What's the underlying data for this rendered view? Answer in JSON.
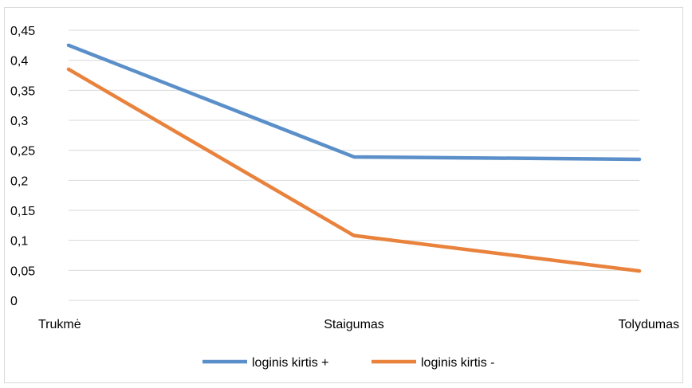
{
  "chart_data": {
    "type": "line",
    "categories": [
      "Trukmė",
      "Staigumas",
      "Tolydumas"
    ],
    "series": [
      {
        "name": "loginis kirtis +",
        "color": "#5b8fc9",
        "values": [
          0.425,
          0.239,
          0.235
        ]
      },
      {
        "name": "loginis kirtis -",
        "color": "#e8823c",
        "values": [
          0.385,
          0.108,
          0.049
        ]
      }
    ],
    "ylim": [
      0,
      0.45
    ],
    "yticks": [
      "0",
      "0,05",
      "0,1",
      "0,15",
      "0,2",
      "0,25",
      "0,3",
      "0,35",
      "0,4",
      "0,45"
    ],
    "grid": true,
    "legend": "bottom"
  }
}
